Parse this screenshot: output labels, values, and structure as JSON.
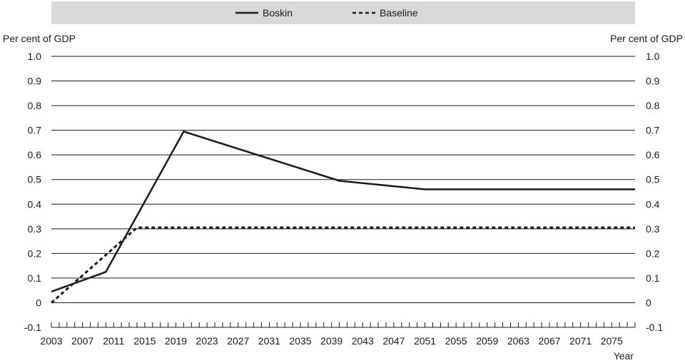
{
  "chart_data": {
    "type": "line",
    "title": "",
    "ylabel_left": "Per cent of GDP",
    "ylabel_right": "Per cent of GDP",
    "xlabel": "Year",
    "ylim": [
      -0.1,
      1.0
    ],
    "yticks": [
      "1.0",
      "0.9",
      "0.8",
      "0.7",
      "0.6",
      "0.5",
      "0.4",
      "0.3",
      "0.2",
      "0.1",
      "0",
      "-0.1"
    ],
    "ytick_values": [
      1.0,
      0.9,
      0.8,
      0.7,
      0.6,
      0.5,
      0.4,
      0.3,
      0.2,
      0.1,
      0,
      -0.1
    ],
    "xlim": [
      2003,
      2078
    ],
    "xticks": [
      2003,
      2007,
      2011,
      2015,
      2019,
      2023,
      2027,
      2031,
      2035,
      2039,
      2043,
      2047,
      2051,
      2055,
      2059,
      2063,
      2067,
      2071,
      2075
    ],
    "grid": "horizontal",
    "legend_position": "top",
    "series": [
      {
        "name": "Boskin",
        "style": "solid",
        "color": "#1a1a1a",
        "points": [
          [
            2003,
            0.045
          ],
          [
            2010,
            0.125
          ],
          [
            2020,
            0.695
          ],
          [
            2040,
            0.495
          ],
          [
            2051,
            0.46
          ],
          [
            2078,
            0.46
          ]
        ]
      },
      {
        "name": "Baseline",
        "style": "dashed",
        "color": "#1a1a1a",
        "points": [
          [
            2003,
            0.0
          ],
          [
            2014,
            0.305
          ],
          [
            2078,
            0.305
          ]
        ]
      }
    ]
  }
}
